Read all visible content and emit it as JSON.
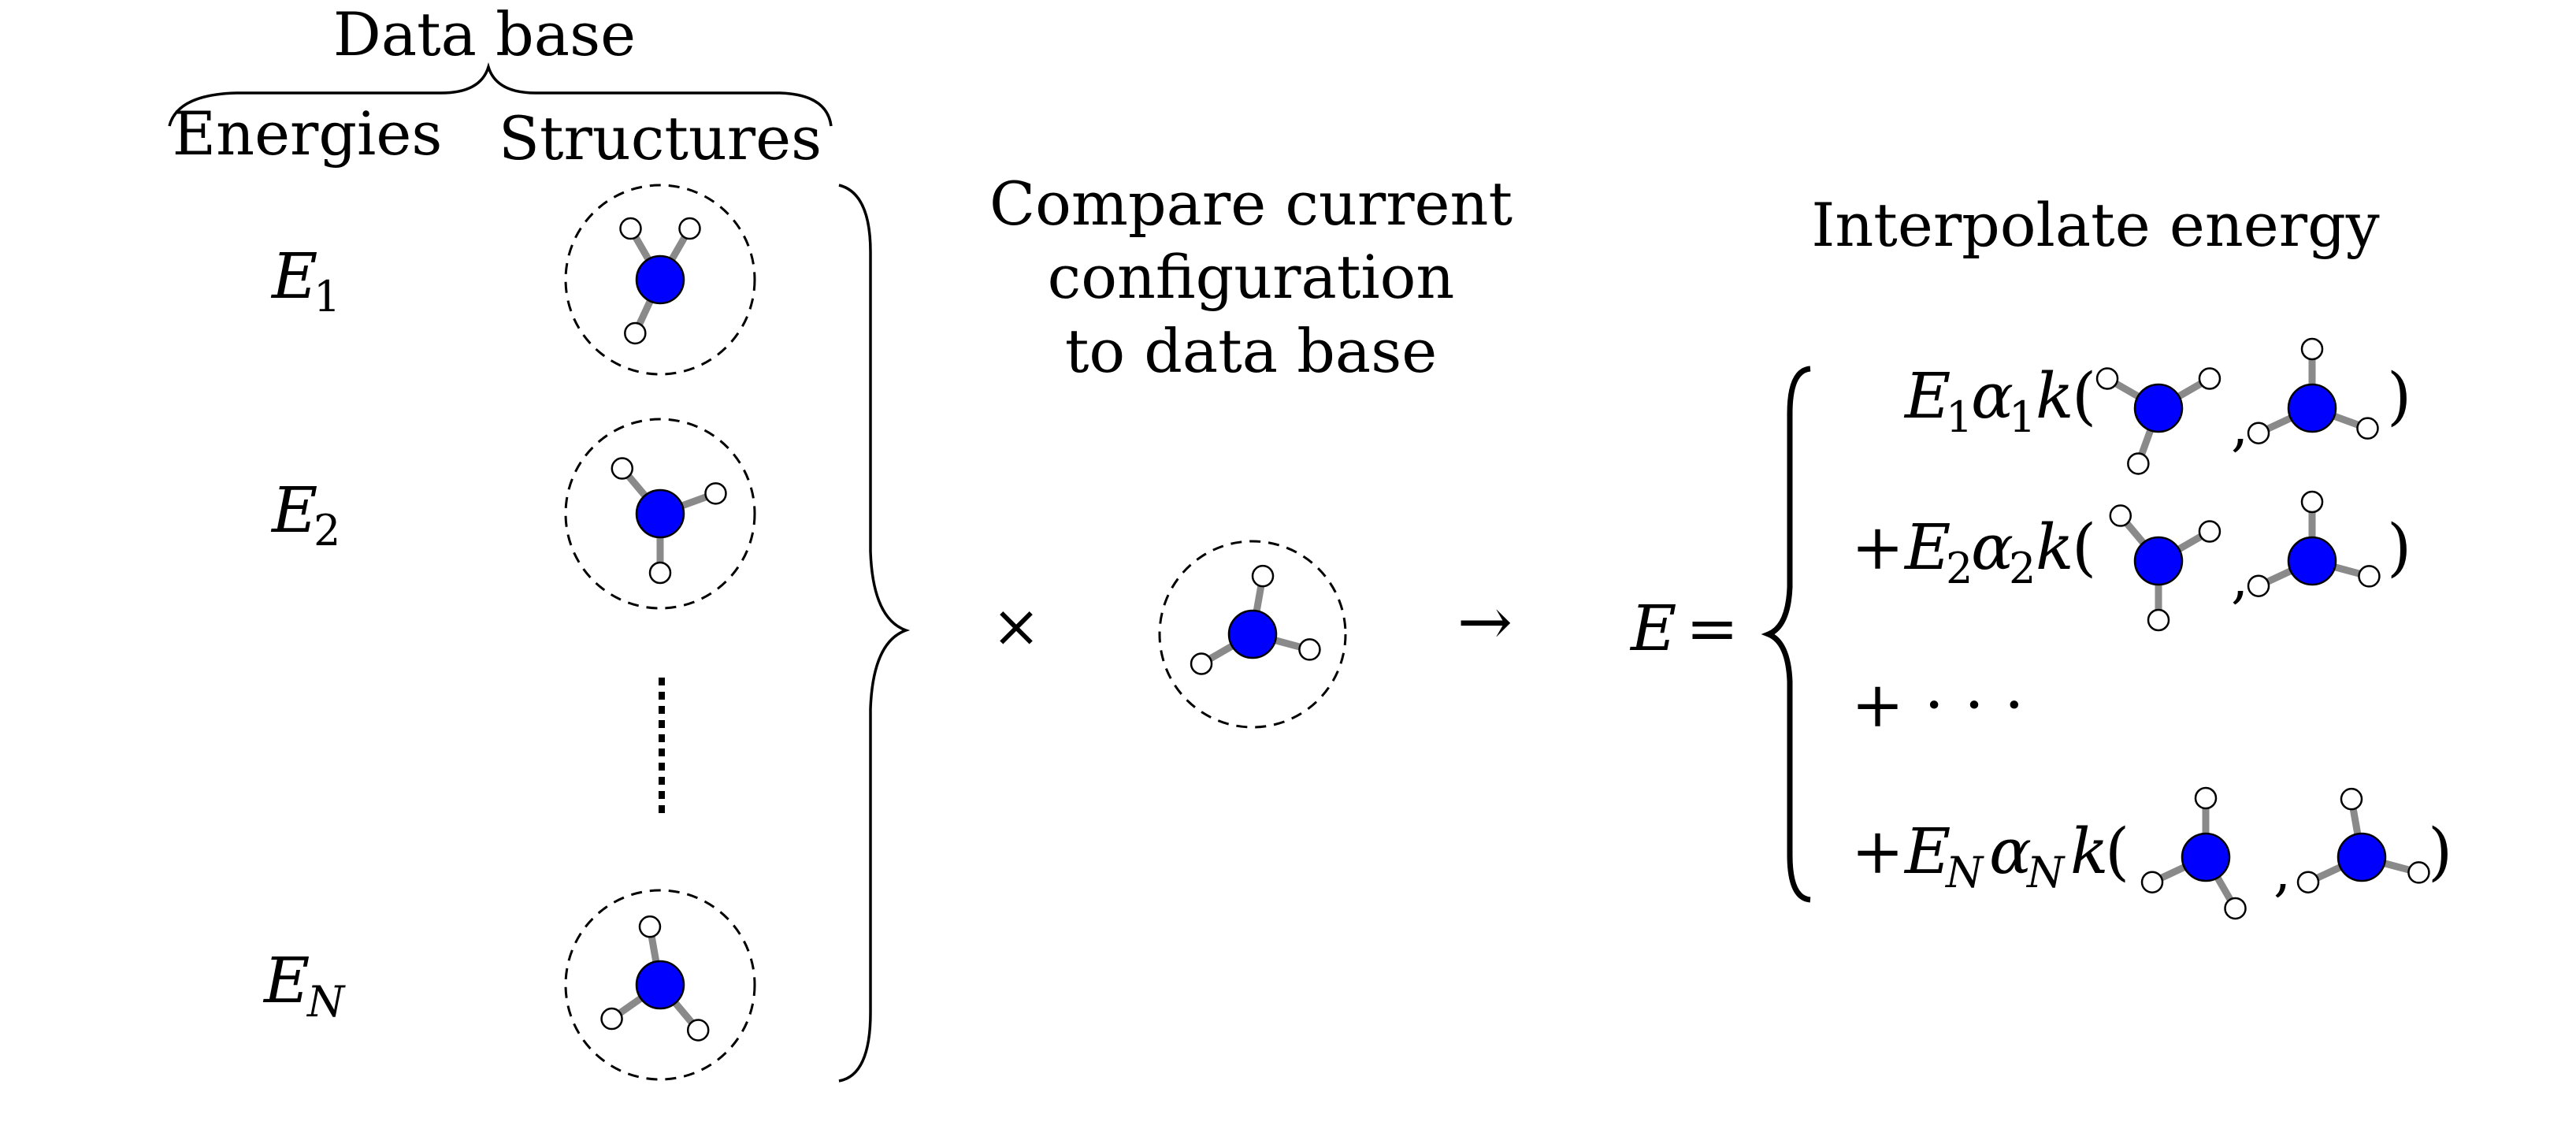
{
  "header": {
    "database_label": "Data base",
    "energies_label": "Energies",
    "structures_label": "Structures"
  },
  "energies": [
    {
      "symbol": "E",
      "sub": "1"
    },
    {
      "symbol": "E",
      "sub": "2"
    },
    {
      "symbol": "E",
      "sub": "N"
    }
  ],
  "compare": {
    "line1": "Compare current",
    "line2": "configuration",
    "line3": "to data base"
  },
  "operators": {
    "times": "×",
    "arrow": "→"
  },
  "interpolate": {
    "title": "Interpolate energy",
    "lhs": "E =",
    "terms": [
      {
        "prefix": "",
        "E_sub": "1",
        "alpha_sub": "1"
      },
      {
        "prefix": "+",
        "E_sub": "2",
        "alpha_sub": "2"
      },
      {
        "prefix": "+",
        "E_sub": "N",
        "alpha_sub": "N"
      }
    ],
    "ellipsis": "+ · · ·"
  },
  "colors": {
    "central_atom": "#0000ff",
    "bond": "#8a8a8a",
    "outer_atom": "#ffffff",
    "ink": "#000000"
  }
}
